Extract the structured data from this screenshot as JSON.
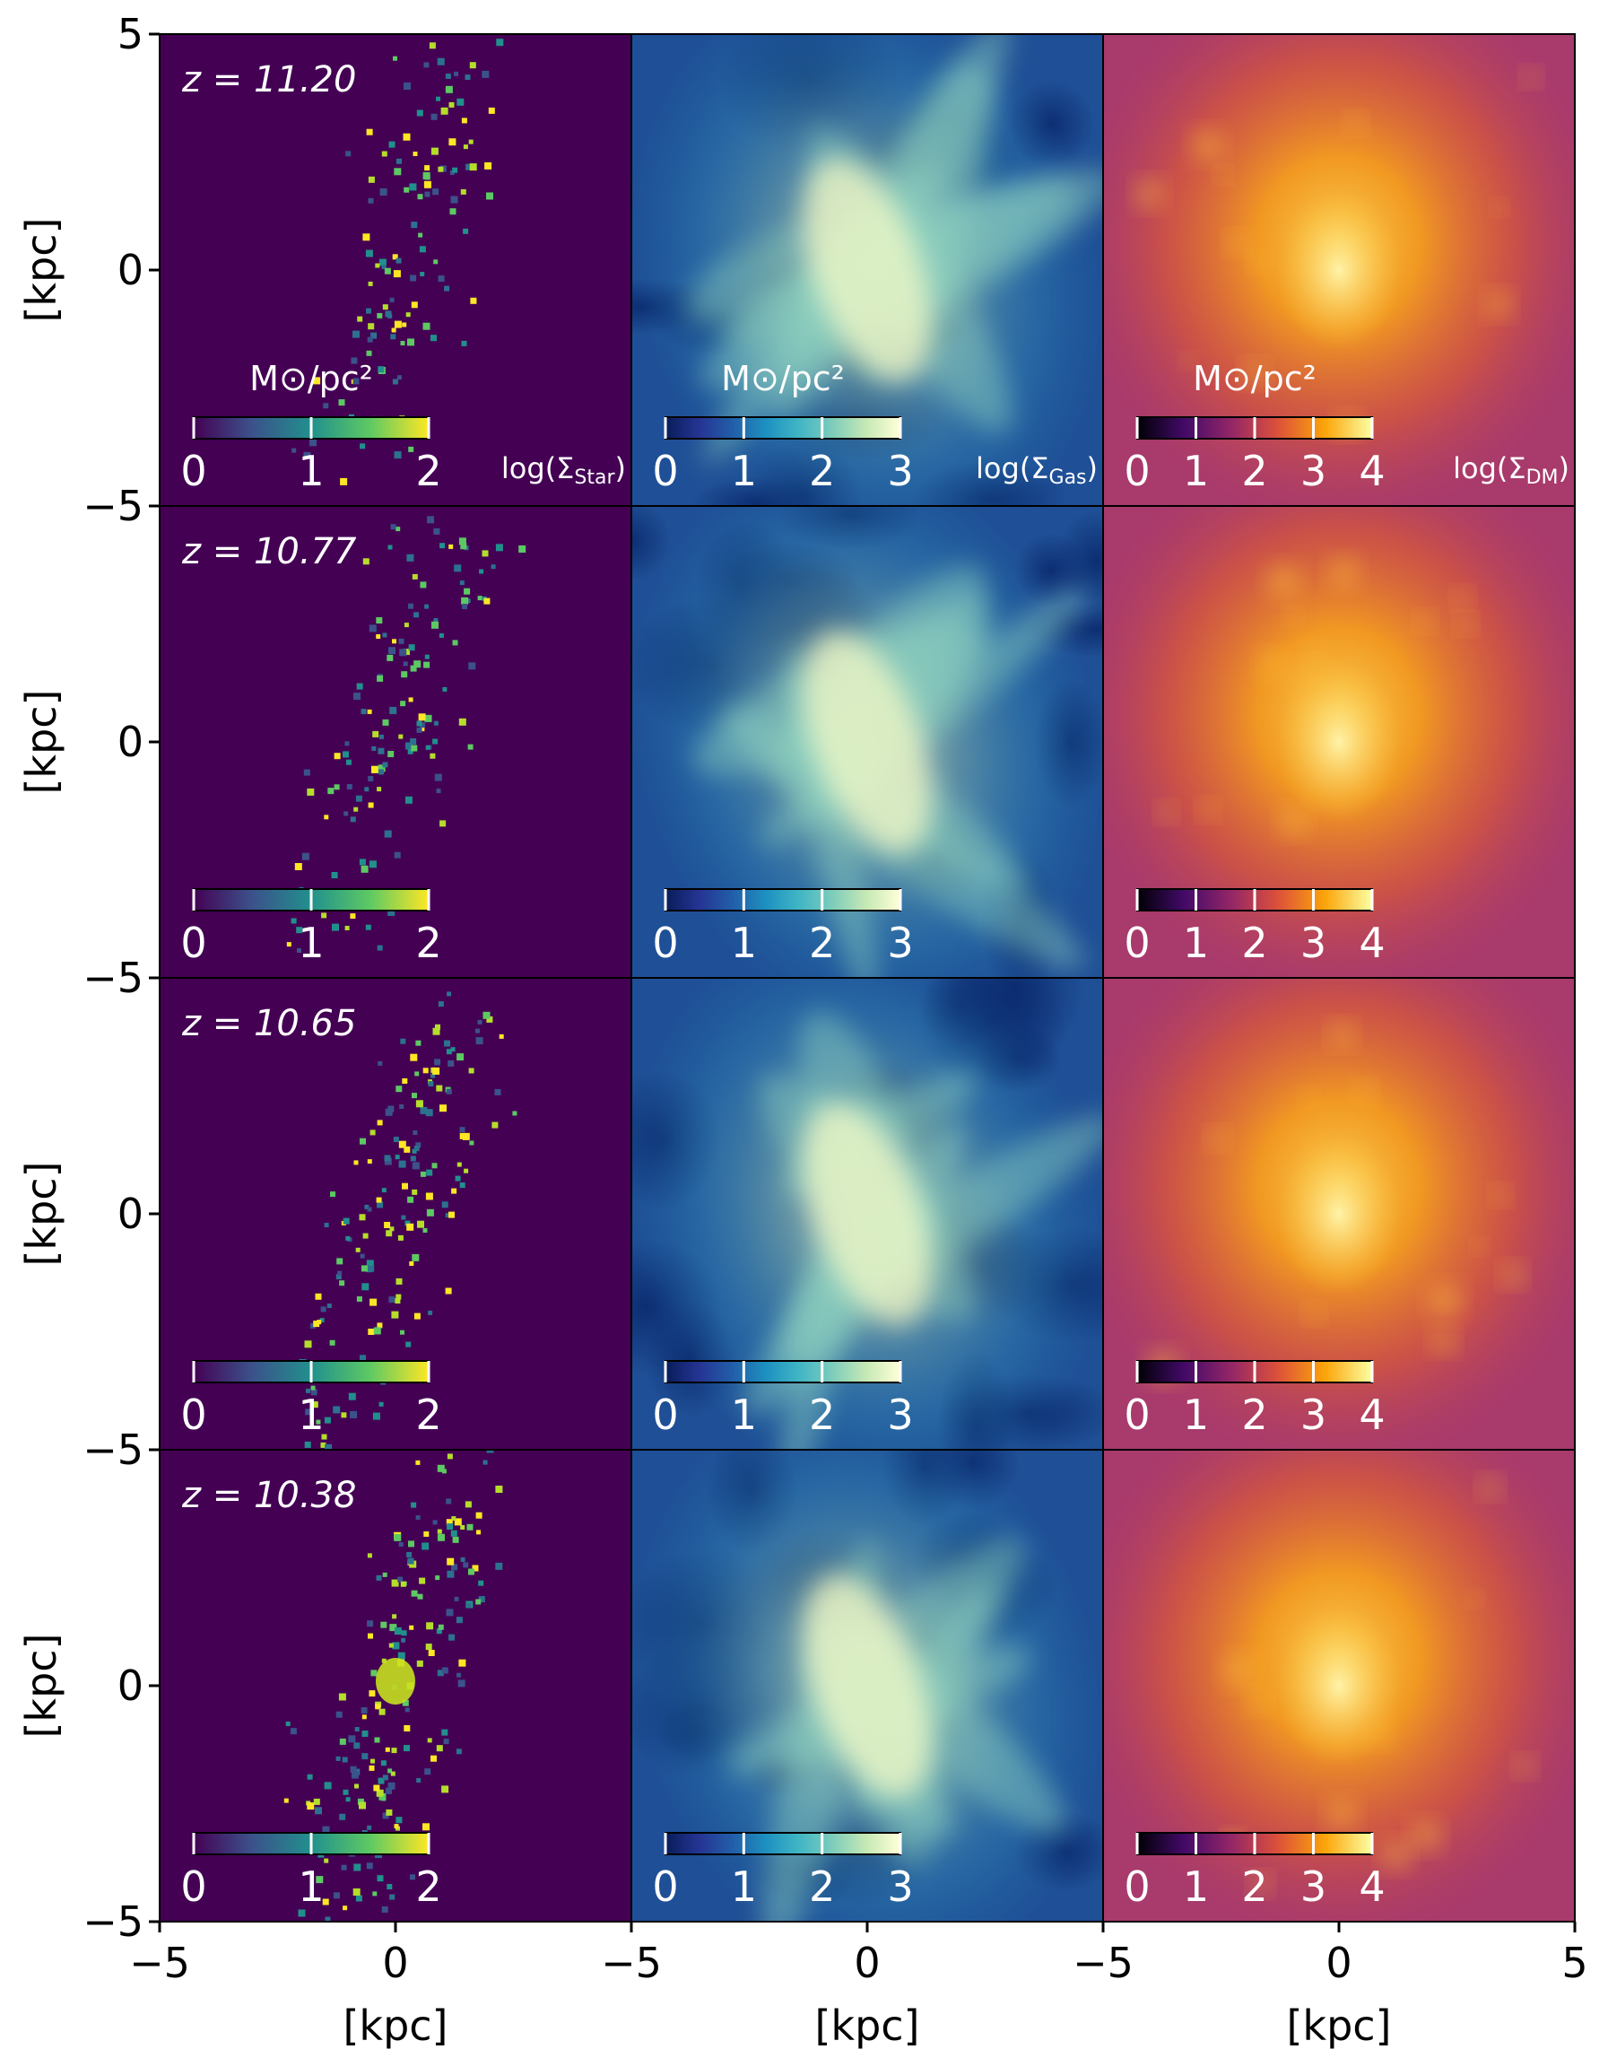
{
  "chart_data": {
    "type": "heatmap",
    "layout": {
      "rows": 4,
      "cols": 3
    },
    "xlabel": "[kpc]",
    "ylabel": "[kpc]",
    "xlim": [
      -5,
      5
    ],
    "ylim": [
      -5,
      5
    ],
    "x_ticks": [
      -5,
      0,
      5
    ],
    "y_ticks": [
      -5,
      0,
      5
    ],
    "x_tick_labels": [
      "−5",
      "0",
      "−5",
      "0",
      "−5",
      "0",
      "5"
    ],
    "y_tick_labels": [
      "5",
      "0",
      "−5",
      "0",
      "−5",
      "0",
      "−5",
      "0",
      "−5"
    ],
    "redshifts": [
      "z = 11.20",
      "z = 10.77",
      "z = 10.65",
      "z = 10.38"
    ],
    "colorbar_unit": "M⊙/pc²",
    "columns": [
      {
        "quantity": "log(Σ_Star)",
        "label_base": "log(Σ",
        "label_sub": "Star",
        "label_end": ")",
        "cmap": "viridis",
        "range": [
          0,
          2
        ],
        "ticks": [
          "0",
          "1",
          "2"
        ],
        "colors": [
          "#440154",
          "#3b528b",
          "#21908d",
          "#5dc963",
          "#fde725"
        ],
        "background": "#440154"
      },
      {
        "quantity": "log(Σ_Gas)",
        "label_base": "log(Σ",
        "label_sub": "Gas",
        "label_end": ")",
        "cmap": "YlGnBu_r",
        "range": [
          0,
          3
        ],
        "ticks": [
          "0",
          "1",
          "2",
          "3"
        ],
        "colors": [
          "#081d58",
          "#253494",
          "#225ea8",
          "#1d91c0",
          "#41b6c4",
          "#7fcdbb",
          "#c7e9b4",
          "#ffffd9"
        ],
        "background": "#1f4f96"
      },
      {
        "quantity": "log(Σ_DM)",
        "label_base": "log(Σ",
        "label_sub": "DM",
        "label_end": ")",
        "cmap": "inferno",
        "range": [
          0,
          4
        ],
        "ticks": [
          "0",
          "1",
          "2",
          "3",
          "4"
        ],
        "colors": [
          "#000004",
          "#420a68",
          "#932667",
          "#dd513a",
          "#fca50a",
          "#fcffa4"
        ],
        "background": "#a83a6c"
      }
    ]
  }
}
